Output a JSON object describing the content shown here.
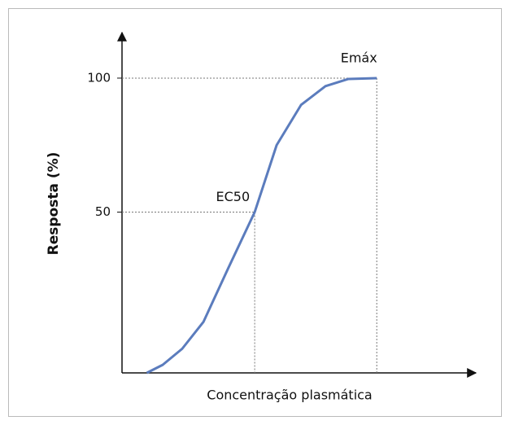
{
  "chart_data": {
    "type": "line",
    "xlabel": "Concentração plasmática",
    "ylabel": "Resposta (%)",
    "xlim": [
      0,
      100
    ],
    "ylim": [
      -10,
      117
    ],
    "yticks": [
      50,
      100
    ],
    "series": [
      {
        "color": "#5b7cbd",
        "x": [
          7,
          11.5,
          17,
          23,
          30,
          37.5,
          43.7,
          50.6,
          57.5,
          64,
          72
        ],
        "values": [
          -10,
          -7,
          -1,
          9,
          29,
          50,
          75,
          90,
          97,
          99.7,
          100
        ]
      }
    ],
    "annotations": [
      {
        "text": "Emáx",
        "x": 72,
        "y": 100
      },
      {
        "text": "EC50",
        "x": 37.5,
        "y": 50
      }
    ]
  }
}
